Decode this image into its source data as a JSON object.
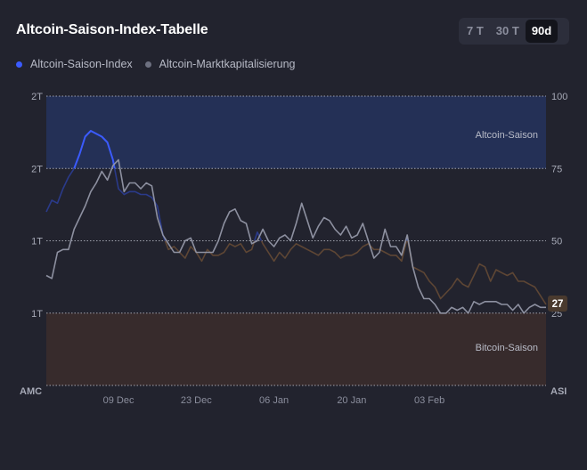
{
  "header": {
    "title": "Altcoin-Saison-Index-Tabelle"
  },
  "range_buttons": [
    {
      "label": "7 T",
      "active": false
    },
    {
      "label": "30 T",
      "active": false
    },
    {
      "label": "90d",
      "active": true
    }
  ],
  "legend": [
    {
      "label": "Altcoin-Saison-Index",
      "color": "#3b5bff"
    },
    {
      "label": "Altcoin-Marktkapitalisierung",
      "color": "#6d7080"
    }
  ],
  "colors": {
    "index_line": "#3b5bff",
    "index_line_dim": "#2a3a8a",
    "index_line_bitcoin": "#5e4634",
    "marketcap_line": "#9497a6",
    "altcoin_zone": "#243056",
    "bitcoin_zone": "#372b2c",
    "current_badge": "#4a3a2e"
  },
  "chart_data": {
    "type": "line",
    "xlabel_left": "AMC",
    "xlabel_right": "ASI",
    "x_ticks": [
      "09 Dec",
      "23 Dec",
      "06 Jan",
      "20 Jan",
      "03 Feb"
    ],
    "x_tick_positions": [
      13,
      27,
      41,
      55,
      69
    ],
    "x_range": [
      0,
      90
    ],
    "left_axis": {
      "ticks": [
        "2T",
        "2T",
        "1T",
        "1T"
      ],
      "tick_values": [
        100,
        75,
        50,
        25
      ]
    },
    "right_axis": {
      "ticks": [
        "100",
        "75",
        "50",
        "25"
      ],
      "tick_values": [
        100,
        75,
        50,
        25
      ]
    },
    "ylim": [
      0,
      100
    ],
    "zones": [
      {
        "label": "Altcoin-Saison",
        "from": 75,
        "to": 100
      },
      {
        "label": "Bitcoin-Saison",
        "from": 0,
        "to": 25
      }
    ],
    "current_value": "27",
    "series": [
      {
        "name": "Altcoin-Saison-Index",
        "values": [
          [
            0,
            60
          ],
          [
            1,
            64
          ],
          [
            2,
            63
          ],
          [
            3,
            68
          ],
          [
            4,
            72
          ],
          [
            5,
            75
          ],
          [
            6,
            80
          ],
          [
            7,
            86
          ],
          [
            8,
            88
          ],
          [
            9,
            87
          ],
          [
            10,
            86
          ],
          [
            11,
            84
          ],
          [
            12,
            78
          ],
          [
            13,
            68
          ],
          [
            14,
            66
          ],
          [
            15,
            67
          ],
          [
            16,
            67
          ],
          [
            17,
            66
          ],
          [
            18,
            66
          ],
          [
            19,
            65
          ],
          [
            20,
            62
          ],
          [
            21,
            52
          ],
          [
            22,
            47
          ],
          [
            23,
            48
          ],
          [
            24,
            46
          ],
          [
            25,
            44
          ],
          [
            26,
            48
          ],
          [
            27,
            46
          ],
          [
            28,
            43
          ],
          [
            29,
            47
          ],
          [
            30,
            45
          ],
          [
            31,
            45
          ],
          [
            32,
            46
          ],
          [
            33,
            49
          ],
          [
            34,
            48
          ],
          [
            35,
            49
          ],
          [
            36,
            46
          ],
          [
            37,
            47
          ],
          [
            38,
            53
          ],
          [
            39,
            49
          ],
          [
            40,
            46
          ],
          [
            41,
            43
          ],
          [
            42,
            46
          ],
          [
            43,
            44
          ],
          [
            44,
            47
          ],
          [
            45,
            49
          ],
          [
            46,
            48
          ],
          [
            47,
            47
          ],
          [
            48,
            46
          ],
          [
            49,
            45
          ],
          [
            50,
            47
          ],
          [
            51,
            47
          ],
          [
            52,
            46
          ],
          [
            53,
            44
          ],
          [
            54,
            45
          ],
          [
            55,
            45
          ],
          [
            56,
            46
          ],
          [
            57,
            48
          ],
          [
            58,
            49
          ],
          [
            59,
            47
          ],
          [
            60,
            47
          ],
          [
            61,
            46
          ],
          [
            62,
            45
          ],
          [
            63,
            45
          ],
          [
            64,
            43
          ],
          [
            65,
            51
          ],
          [
            66,
            41
          ],
          [
            67,
            40
          ],
          [
            68,
            39
          ],
          [
            69,
            36
          ],
          [
            70,
            34
          ],
          [
            71,
            30
          ],
          [
            72,
            32
          ],
          [
            73,
            34
          ],
          [
            74,
            37
          ],
          [
            75,
            35
          ],
          [
            76,
            34
          ],
          [
            77,
            38
          ],
          [
            78,
            42
          ],
          [
            79,
            41
          ],
          [
            80,
            36
          ],
          [
            81,
            40
          ],
          [
            82,
            39
          ],
          [
            83,
            38
          ],
          [
            84,
            39
          ],
          [
            85,
            36
          ],
          [
            86,
            36
          ],
          [
            87,
            35
          ],
          [
            88,
            34
          ],
          [
            89,
            31
          ],
          [
            90,
            28
          ]
        ]
      },
      {
        "name": "Altcoin-Marktkapitalisierung",
        "values": [
          [
            0,
            38
          ],
          [
            1,
            37
          ],
          [
            2,
            46
          ],
          [
            3,
            47
          ],
          [
            4,
            47
          ],
          [
            5,
            54
          ],
          [
            6,
            58
          ],
          [
            7,
            62
          ],
          [
            8,
            67
          ],
          [
            9,
            70
          ],
          [
            10,
            74
          ],
          [
            11,
            71
          ],
          [
            12,
            76
          ],
          [
            13,
            78
          ],
          [
            14,
            67
          ],
          [
            15,
            70
          ],
          [
            16,
            70
          ],
          [
            17,
            68
          ],
          [
            18,
            70
          ],
          [
            19,
            69
          ],
          [
            20,
            58
          ],
          [
            21,
            52
          ],
          [
            22,
            49
          ],
          [
            23,
            46
          ],
          [
            24,
            46
          ],
          [
            25,
            50
          ],
          [
            26,
            51
          ],
          [
            27,
            46
          ],
          [
            28,
            46
          ],
          [
            29,
            46
          ],
          [
            30,
            46
          ],
          [
            31,
            50
          ],
          [
            32,
            56
          ],
          [
            33,
            60
          ],
          [
            34,
            61
          ],
          [
            35,
            57
          ],
          [
            36,
            56
          ],
          [
            37,
            49
          ],
          [
            38,
            50
          ],
          [
            39,
            54
          ],
          [
            40,
            50
          ],
          [
            41,
            48
          ],
          [
            42,
            51
          ],
          [
            43,
            52
          ],
          [
            44,
            50
          ],
          [
            45,
            56
          ],
          [
            46,
            63
          ],
          [
            47,
            57
          ],
          [
            48,
            51
          ],
          [
            49,
            55
          ],
          [
            50,
            58
          ],
          [
            51,
            57
          ],
          [
            52,
            54
          ],
          [
            53,
            52
          ],
          [
            54,
            55
          ],
          [
            55,
            51
          ],
          [
            56,
            52
          ],
          [
            57,
            56
          ],
          [
            58,
            50
          ],
          [
            59,
            44
          ],
          [
            60,
            46
          ],
          [
            61,
            54
          ],
          [
            62,
            48
          ],
          [
            63,
            48
          ],
          [
            64,
            45
          ],
          [
            65,
            52
          ],
          [
            66,
            41
          ],
          [
            67,
            34
          ],
          [
            68,
            30
          ],
          [
            69,
            30
          ],
          [
            70,
            28
          ],
          [
            71,
            25
          ],
          [
            72,
            25
          ],
          [
            73,
            27
          ],
          [
            74,
            26
          ],
          [
            75,
            27
          ],
          [
            76,
            25
          ],
          [
            77,
            29
          ],
          [
            78,
            28
          ],
          [
            79,
            29
          ],
          [
            80,
            29
          ],
          [
            81,
            29
          ],
          [
            82,
            28
          ],
          [
            83,
            28
          ],
          [
            84,
            26
          ],
          [
            85,
            28
          ],
          [
            86,
            25
          ],
          [
            87,
            27
          ],
          [
            88,
            28
          ],
          [
            89,
            27
          ],
          [
            90,
            27
          ]
        ]
      }
    ]
  }
}
